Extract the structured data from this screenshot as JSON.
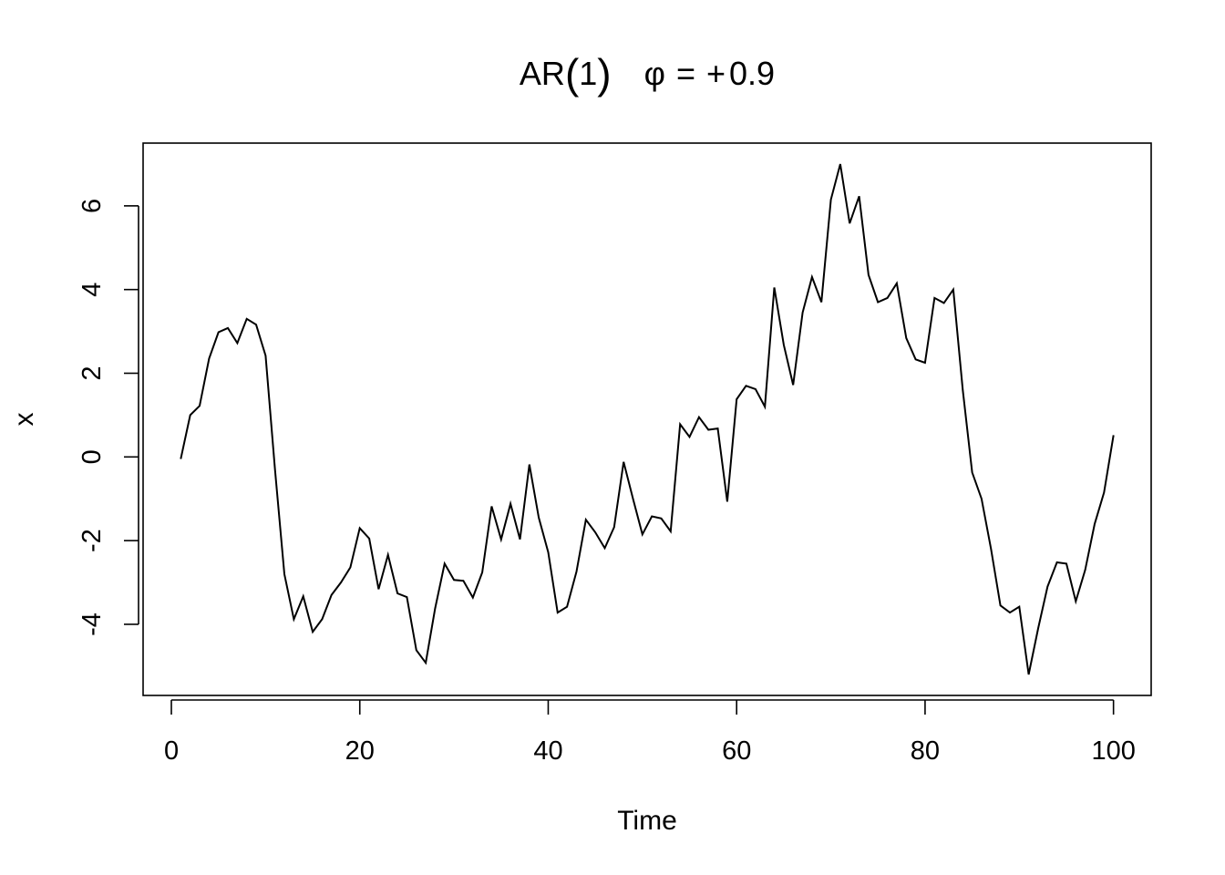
{
  "chart_data": {
    "type": "line",
    "title": "AR(1)   φ = +0.9",
    "title_parts": {
      "prefix": "AR",
      "open_paren": "(",
      "order": "1",
      "close_paren": ")",
      "phi": "φ",
      "equals": "=",
      "plus": "+",
      "value": "0.9"
    },
    "xlabel": "Time",
    "ylabel": "x",
    "xlim": [
      -3,
      104
    ],
    "ylim": [
      -5.7,
      7.5
    ],
    "x_ticks": [
      0,
      20,
      40,
      60,
      80,
      100
    ],
    "x_tick_labels": [
      "0",
      "20",
      "40",
      "60",
      "80",
      "100"
    ],
    "y_ticks": [
      -4,
      -2,
      0,
      2,
      4,
      6
    ],
    "y_tick_labels": [
      "-4",
      "-2",
      "0",
      "2",
      "4",
      "6"
    ],
    "grid": false,
    "legend": "none",
    "line_color": "#000000",
    "series": [
      {
        "x": [
          1,
          2,
          3,
          4,
          5,
          6,
          7,
          8,
          9,
          10,
          11,
          12,
          13,
          14,
          15,
          16,
          17,
          18,
          19,
          20,
          21,
          22,
          23,
          24,
          25,
          26,
          27,
          28,
          29,
          30,
          31,
          32,
          33,
          34,
          35,
          36,
          37,
          38,
          39,
          40,
          41,
          42,
          43,
          44,
          45,
          46,
          47,
          48,
          49,
          50,
          51,
          52,
          53,
          54,
          55,
          56,
          57,
          58,
          59,
          60,
          61,
          62,
          63,
          64,
          65,
          66,
          67,
          68,
          69,
          70,
          71,
          72,
          73,
          74,
          75,
          76,
          77,
          78,
          79,
          80,
          81,
          82,
          83,
          84,
          85,
          86,
          87,
          88,
          89,
          90,
          91,
          92,
          93,
          94,
          95,
          96,
          97,
          98,
          99,
          100
        ],
        "values": [
          -0.05,
          1.0,
          1.22,
          2.35,
          2.98,
          3.08,
          2.72,
          3.3,
          3.16,
          2.42,
          -0.3,
          -2.8,
          -3.88,
          -3.33,
          -4.18,
          -3.88,
          -3.3,
          -3.0,
          -2.64,
          -1.7,
          -1.95,
          -3.16,
          -2.34,
          -3.26,
          -3.35,
          -4.62,
          -4.92,
          -3.62,
          -2.55,
          -2.94,
          -2.96,
          -3.36,
          -2.76,
          -1.18,
          -1.97,
          -1.12,
          -1.97,
          -0.18,
          -1.45,
          -2.28,
          -3.72,
          -3.58,
          -2.74,
          -1.5,
          -1.8,
          -2.18,
          -1.68,
          -0.12,
          -1.0,
          -1.85,
          -1.42,
          -1.47,
          -1.78,
          0.78,
          0.48,
          0.95,
          0.65,
          0.68,
          -1.07,
          1.38,
          1.7,
          1.62,
          1.2,
          4.05,
          2.68,
          1.72,
          3.45,
          4.3,
          3.7,
          6.15,
          7.0,
          5.58,
          6.23,
          4.35,
          3.7,
          3.8,
          4.15,
          2.84,
          2.33,
          2.25,
          3.8,
          3.68,
          4.0,
          1.6,
          -0.37,
          -1.0,
          -2.2,
          -3.55,
          -3.72,
          -3.58,
          -5.2,
          -4.1,
          -3.1,
          -2.52,
          -2.55,
          -3.45,
          -2.7,
          -1.6,
          -0.85,
          0.52
        ]
      }
    ]
  }
}
